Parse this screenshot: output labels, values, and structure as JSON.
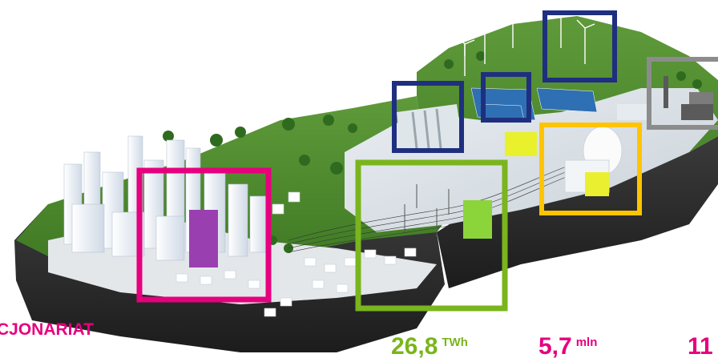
{
  "labels": {
    "akcjonariat": "CJONARIAT",
    "energy_value": "26,8",
    "energy_unit": "TWh",
    "customers_value": "5,7",
    "customers_unit": "mln",
    "partial_value": "11"
  },
  "colors": {
    "magenta": "#e6007e",
    "green": "#7ab51d",
    "navy": "#1f2f7f",
    "yellow": "#ffc400",
    "gray": "#8c8c8c"
  }
}
